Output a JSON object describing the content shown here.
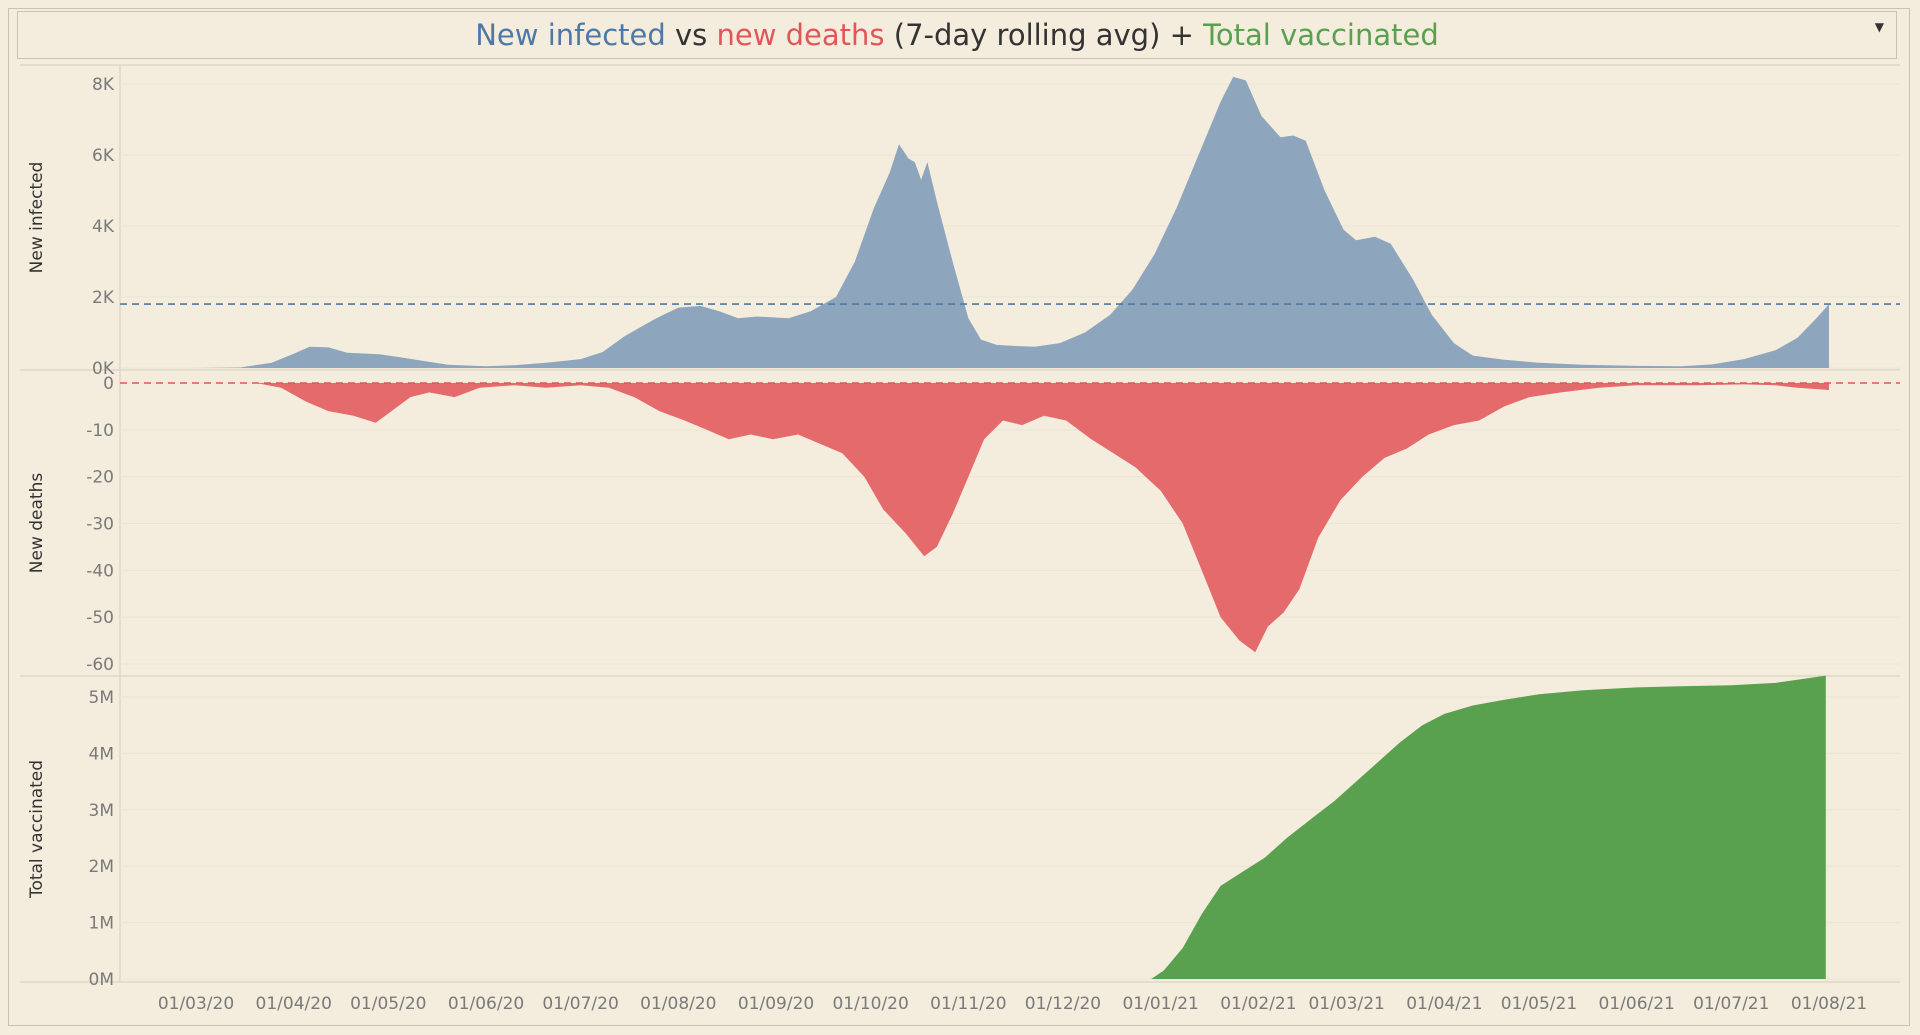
{
  "title": {
    "part1": "New infected",
    "part2": " vs ",
    "part3": "new deaths",
    "part4": " (7-day rolling avg) + ",
    "part5": "Total vaccinated"
  },
  "dropdown_icon": "caret-down-icon",
  "colors": {
    "infected": "#8ea6bd",
    "infected_text": "#4e79a7",
    "deaths": "#e56a6b",
    "deaths_text": "#e15759",
    "vaccinated": "#59a14f",
    "background": "#f4ecdd"
  },
  "chart_data": [
    {
      "type": "area",
      "ylabel": "New infected",
      "yticks": [
        {
          "v": 0,
          "label": "0K"
        },
        {
          "v": 2000,
          "label": "2K"
        },
        {
          "v": 4000,
          "label": "4K"
        },
        {
          "v": 6000,
          "label": "6K"
        },
        {
          "v": 8000,
          "label": "8K"
        }
      ],
      "ylim": [
        0,
        8500
      ],
      "reference_line": 1800,
      "series": [
        {
          "points": [
            [
              "2020-03-01",
              0
            ],
            [
              "2020-03-15",
              15
            ],
            [
              "2020-03-25",
              150
            ],
            [
              "2020-04-01",
              400
            ],
            [
              "2020-04-06",
              600
            ],
            [
              "2020-04-12",
              580
            ],
            [
              "2020-04-18",
              430
            ],
            [
              "2020-04-28",
              390
            ],
            [
              "2020-05-05",
              300
            ],
            [
              "2020-05-12",
              200
            ],
            [
              "2020-05-20",
              90
            ],
            [
              "2020-06-01",
              50
            ],
            [
              "2020-06-10",
              80
            ],
            [
              "2020-06-20",
              150
            ],
            [
              "2020-07-01",
              250
            ],
            [
              "2020-07-08",
              450
            ],
            [
              "2020-07-15",
              900
            ],
            [
              "2020-07-25",
              1400
            ],
            [
              "2020-08-01",
              1700
            ],
            [
              "2020-08-08",
              1750
            ],
            [
              "2020-08-14",
              1600
            ],
            [
              "2020-08-20",
              1400
            ],
            [
              "2020-08-26",
              1450
            ],
            [
              "2020-09-05",
              1400
            ],
            [
              "2020-09-12",
              1600
            ],
            [
              "2020-09-20",
              2000
            ],
            [
              "2020-09-26",
              3000
            ],
            [
              "2020-10-02",
              4500
            ],
            [
              "2020-10-07",
              5500
            ],
            [
              "2020-10-10",
              6300
            ],
            [
              "2020-10-13",
              5900
            ],
            [
              "2020-10-15",
              5800
            ],
            [
              "2020-10-17",
              5300
            ],
            [
              "2020-10-19",
              5800
            ],
            [
              "2020-10-22",
              4700
            ],
            [
              "2020-10-27",
              3000
            ],
            [
              "2020-11-01",
              1400
            ],
            [
              "2020-11-05",
              800
            ],
            [
              "2020-11-10",
              650
            ],
            [
              "2020-11-16",
              620
            ],
            [
              "2020-11-22",
              600
            ],
            [
              "2020-11-30",
              700
            ],
            [
              "2020-12-08",
              1000
            ],
            [
              "2020-12-16",
              1500
            ],
            [
              "2020-12-23",
              2200
            ],
            [
              "2020-12-30",
              3200
            ],
            [
              "2021-01-06",
              4500
            ],
            [
              "2021-01-13",
              6000
            ],
            [
              "2021-01-20",
              7500
            ],
            [
              "2021-01-24",
              8200
            ],
            [
              "2021-01-28",
              8100
            ],
            [
              "2021-02-02",
              7100
            ],
            [
              "2021-02-08",
              6500
            ],
            [
              "2021-02-12",
              6550
            ],
            [
              "2021-02-16",
              6400
            ],
            [
              "2021-02-22",
              5000
            ],
            [
              "2021-02-28",
              3900
            ],
            [
              "2021-03-04",
              3600
            ],
            [
              "2021-03-10",
              3700
            ],
            [
              "2021-03-15",
              3500
            ],
            [
              "2021-03-22",
              2500
            ],
            [
              "2021-03-28",
              1500
            ],
            [
              "2021-04-04",
              700
            ],
            [
              "2021-04-10",
              350
            ],
            [
              "2021-04-20",
              230
            ],
            [
              "2021-05-01",
              150
            ],
            [
              "2021-05-15",
              90
            ],
            [
              "2021-06-01",
              60
            ],
            [
              "2021-06-15",
              50
            ],
            [
              "2021-06-25",
              100
            ],
            [
              "2021-07-05",
              250
            ],
            [
              "2021-07-15",
              500
            ],
            [
              "2021-07-22",
              850
            ],
            [
              "2021-07-28",
              1400
            ],
            [
              "2021-08-01",
              1800
            ]
          ]
        }
      ]
    },
    {
      "type": "area",
      "ylabel": "New deaths",
      "yticks": [
        {
          "v": 0,
          "label": "0"
        },
        {
          "v": -10,
          "label": "-10"
        },
        {
          "v": -20,
          "label": "-20"
        },
        {
          "v": -30,
          "label": "-30"
        },
        {
          "v": -40,
          "label": "-40"
        },
        {
          "v": -50,
          "label": "-50"
        },
        {
          "v": -60,
          "label": "-60"
        }
      ],
      "ylim": [
        -62,
        2
      ],
      "reference_line": 0,
      "series": [
        {
          "points": [
            [
              "2020-03-01",
              0
            ],
            [
              "2020-03-20",
              0
            ],
            [
              "2020-03-28",
              -1
            ],
            [
              "2020-04-05",
              -4
            ],
            [
              "2020-04-12",
              -6
            ],
            [
              "2020-04-20",
              -7
            ],
            [
              "2020-04-27",
              -8.5
            ],
            [
              "2020-05-02",
              -6
            ],
            [
              "2020-05-08",
              -3
            ],
            [
              "2020-05-14",
              -2
            ],
            [
              "2020-05-22",
              -3
            ],
            [
              "2020-05-30",
              -1
            ],
            [
              "2020-06-10",
              -0.5
            ],
            [
              "2020-06-20",
              -1
            ],
            [
              "2020-07-01",
              -0.5
            ],
            [
              "2020-07-10",
              -1
            ],
            [
              "2020-07-18",
              -3
            ],
            [
              "2020-07-26",
              -6
            ],
            [
              "2020-08-03",
              -8
            ],
            [
              "2020-08-10",
              -10
            ],
            [
              "2020-08-17",
              -12
            ],
            [
              "2020-08-24",
              -11
            ],
            [
              "2020-08-31",
              -12
            ],
            [
              "2020-09-08",
              -11
            ],
            [
              "2020-09-15",
              -13
            ],
            [
              "2020-09-22",
              -15
            ],
            [
              "2020-09-29",
              -20
            ],
            [
              "2020-10-05",
              -27
            ],
            [
              "2020-10-12",
              -32
            ],
            [
              "2020-10-18",
              -37
            ],
            [
              "2020-10-22",
              -35
            ],
            [
              "2020-10-27",
              -28
            ],
            [
              "2020-11-01",
              -20
            ],
            [
              "2020-11-06",
              -12
            ],
            [
              "2020-11-12",
              -8
            ],
            [
              "2020-11-18",
              -9
            ],
            [
              "2020-11-25",
              -7
            ],
            [
              "2020-12-02",
              -8
            ],
            [
              "2020-12-10",
              -12
            ],
            [
              "2020-12-17",
              -15
            ],
            [
              "2020-12-24",
              -18
            ],
            [
              "2021-01-01",
              -23
            ],
            [
              "2021-01-08",
              -30
            ],
            [
              "2021-01-14",
              -40
            ],
            [
              "2021-01-20",
              -50
            ],
            [
              "2021-01-26",
              -55
            ],
            [
              "2021-01-31",
              -57.5
            ],
            [
              "2021-02-04",
              -52
            ],
            [
              "2021-02-09",
              -49
            ],
            [
              "2021-02-14",
              -44
            ],
            [
              "2021-02-20",
              -33
            ],
            [
              "2021-02-27",
              -25
            ],
            [
              "2021-03-06",
              -20
            ],
            [
              "2021-03-13",
              -16
            ],
            [
              "2021-03-20",
              -14
            ],
            [
              "2021-03-27",
              -11
            ],
            [
              "2021-04-04",
              -9
            ],
            [
              "2021-04-12",
              -8
            ],
            [
              "2021-04-20",
              -5
            ],
            [
              "2021-04-28",
              -3
            ],
            [
              "2021-05-08",
              -2
            ],
            [
              "2021-05-20",
              -1
            ],
            [
              "2021-06-01",
              -0.5
            ],
            [
              "2021-06-20",
              -0.5
            ],
            [
              "2021-07-05",
              -0.3
            ],
            [
              "2021-07-15",
              -0.5
            ],
            [
              "2021-07-22",
              -1
            ],
            [
              "2021-08-01",
              -1.5
            ]
          ]
        }
      ]
    },
    {
      "type": "area",
      "ylabel": "Total vaccinated",
      "yticks": [
        {
          "v": 0,
          "label": "0M"
        },
        {
          "v": 1000000,
          "label": "1M"
        },
        {
          "v": 2000000,
          "label": "2M"
        },
        {
          "v": 3000000,
          "label": "3M"
        },
        {
          "v": 4000000,
          "label": "4M"
        },
        {
          "v": 5000000,
          "label": "5M"
        }
      ],
      "ylim": [
        0,
        5500000
      ],
      "series": [
        {
          "points": [
            [
              "2020-03-01",
              0
            ],
            [
              "2020-12-29",
              0
            ],
            [
              "2021-01-02",
              150000
            ],
            [
              "2021-01-08",
              550000
            ],
            [
              "2021-01-14",
              1150000
            ],
            [
              "2021-01-20",
              1650000
            ],
            [
              "2021-01-27",
              1900000
            ],
            [
              "2021-02-03",
              2150000
            ],
            [
              "2021-02-10",
              2500000
            ],
            [
              "2021-02-18",
              2850000
            ],
            [
              "2021-02-25",
              3150000
            ],
            [
              "2021-03-04",
              3500000
            ],
            [
              "2021-03-11",
              3850000
            ],
            [
              "2021-03-18",
              4200000
            ],
            [
              "2021-03-25",
              4500000
            ],
            [
              "2021-04-01",
              4700000
            ],
            [
              "2021-04-10",
              4850000
            ],
            [
              "2021-04-20",
              4950000
            ],
            [
              "2021-05-01",
              5050000
            ],
            [
              "2021-05-15",
              5120000
            ],
            [
              "2021-06-01",
              5170000
            ],
            [
              "2021-06-15",
              5190000
            ],
            [
              "2021-07-01",
              5210000
            ],
            [
              "2021-07-15",
              5250000
            ],
            [
              "2021-07-25",
              5330000
            ],
            [
              "2021-07-31",
              5380000
            ]
          ]
        }
      ]
    }
  ],
  "xaxis": {
    "range": [
      "2020-02-01",
      "2021-08-31"
    ],
    "ticks": [
      {
        "d": "2020-03-01",
        "label": "01/03/20"
      },
      {
        "d": "2020-04-01",
        "label": "01/04/20"
      },
      {
        "d": "2020-05-01",
        "label": "01/05/20"
      },
      {
        "d": "2020-06-01",
        "label": "01/06/20"
      },
      {
        "d": "2020-07-01",
        "label": "01/07/20"
      },
      {
        "d": "2020-08-01",
        "label": "01/08/20"
      },
      {
        "d": "2020-09-01",
        "label": "01/09/20"
      },
      {
        "d": "2020-10-01",
        "label": "01/10/20"
      },
      {
        "d": "2020-11-01",
        "label": "01/11/20"
      },
      {
        "d": "2020-12-01",
        "label": "01/12/20"
      },
      {
        "d": "2021-01-01",
        "label": "01/01/21"
      },
      {
        "d": "2021-02-01",
        "label": "01/02/21"
      },
      {
        "d": "2021-03-01",
        "label": "01/03/21"
      },
      {
        "d": "2021-04-01",
        "label": "01/04/21"
      },
      {
        "d": "2021-05-01",
        "label": "01/05/21"
      },
      {
        "d": "2021-06-01",
        "label": "01/06/21"
      },
      {
        "d": "2021-07-01",
        "label": "01/07/21"
      },
      {
        "d": "2021-08-01",
        "label": "01/08/21"
      }
    ]
  }
}
